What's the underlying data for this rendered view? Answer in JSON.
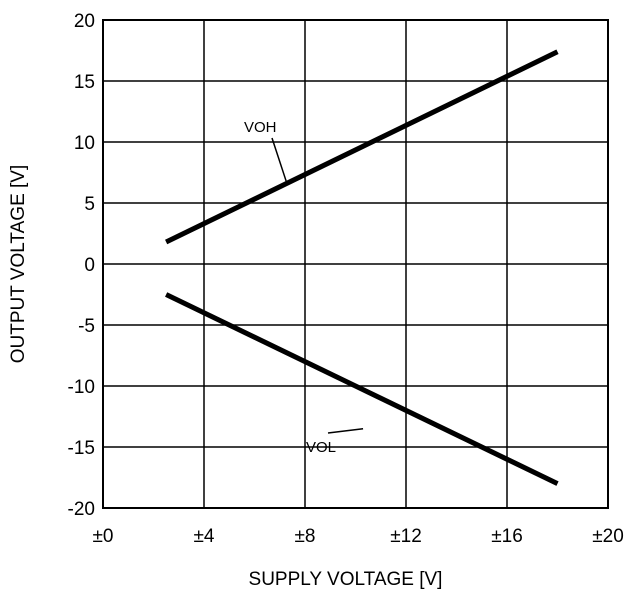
{
  "chart_data": {
    "type": "line",
    "title": "",
    "xlabel": "SUPPLY VOLTAGE [V]",
    "ylabel": "OUTPUT VOLTAGE [V]",
    "xlim": [
      0,
      20
    ],
    "ylim": [
      -20,
      20
    ],
    "x_ticks": [
      0,
      4,
      8,
      12,
      16,
      20
    ],
    "x_tick_labels": [
      "±0",
      "±4",
      "±8",
      "±12",
      "±16",
      "±20"
    ],
    "y_ticks": [
      20,
      15,
      10,
      5,
      0,
      -5,
      -10,
      -15,
      -20
    ],
    "y_tick_labels": [
      "20",
      "15",
      "10",
      "5",
      "0",
      "-5",
      "-10",
      "-15",
      "-20"
    ],
    "grid": true,
    "series": [
      {
        "name": "VOH",
        "color": "#000000",
        "x": [
          2.5,
          18
        ],
        "y": [
          1.8,
          17.4
        ],
        "label_at": [
          7.3,
          6.5
        ]
      },
      {
        "name": "VOL",
        "color": "#000000",
        "x": [
          2.5,
          18
        ],
        "y": [
          -2.5,
          -18
        ],
        "label_at": [
          10.3,
          -13.5
        ]
      }
    ]
  }
}
